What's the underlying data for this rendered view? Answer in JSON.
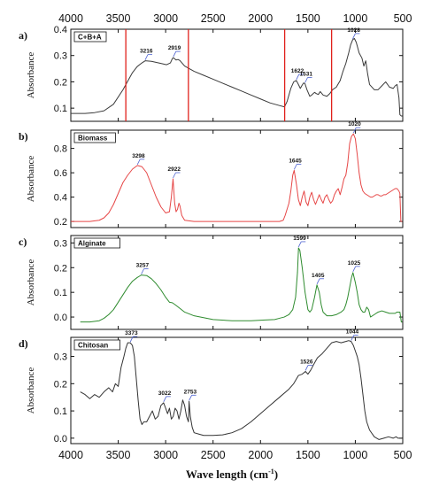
{
  "chart_data": {
    "type": "line",
    "xlabel": "Wave length (cm",
    "xlabel_sup": "-1",
    "xlabel_end": ")",
    "xlim": [
      4000,
      500
    ],
    "x_ticks": [
      "4000",
      "3500",
      "3000",
      "2500",
      "2000",
      "1500",
      "1000",
      "500"
    ],
    "reference_lines_x": [
      3420,
      2760,
      1745,
      1250
    ],
    "reference_line_color": "#e0201b",
    "panels": [
      {
        "letter": "a)",
        "title": "C+B+A",
        "ylabel": "Absorbance",
        "color": "#3a3a3a",
        "ylim": [
          0.05,
          0.4
        ],
        "y_ticks": [
          "0.1",
          "0.2",
          "0.3",
          "0.4"
        ],
        "y_tick_values": [
          0.1,
          0.2,
          0.3,
          0.4
        ],
        "peaks": [
          {
            "label": "3216",
            "x": 3216,
            "y": 0.28
          },
          {
            "label": "2919",
            "x": 2919,
            "y": 0.292
          },
          {
            "label": "1622",
            "x": 1622,
            "y": 0.205
          },
          {
            "label": "1531",
            "x": 1531,
            "y": 0.193
          },
          {
            "label": "1028",
            "x": 1028,
            "y": 0.36
          }
        ],
        "x": [
          4000,
          3950,
          3850,
          3750,
          3650,
          3550,
          3450,
          3350,
          3300,
          3250,
          3216,
          3150,
          3050,
          2990,
          2950,
          2930,
          2919,
          2890,
          2870,
          2850,
          2800,
          2700,
          2600,
          2500,
          2400,
          2300,
          2200,
          2100,
          2000,
          1900,
          1800,
          1750,
          1740,
          1720,
          1700,
          1680,
          1650,
          1622,
          1600,
          1580,
          1560,
          1545,
          1531,
          1510,
          1480,
          1460,
          1430,
          1410,
          1390,
          1370,
          1340,
          1300,
          1270,
          1240,
          1200,
          1160,
          1130,
          1100,
          1070,
          1050,
          1028,
          1010,
          990,
          960,
          930,
          910,
          890,
          870,
          850,
          800,
          760,
          720,
          680,
          640,
          600,
          580,
          560,
          540,
          530,
          515,
          505
        ],
        "y": [
          0.08,
          0.08,
          0.08,
          0.083,
          0.09,
          0.115,
          0.17,
          0.235,
          0.258,
          0.272,
          0.28,
          0.278,
          0.27,
          0.265,
          0.272,
          0.288,
          0.292,
          0.283,
          0.285,
          0.281,
          0.26,
          0.24,
          0.225,
          0.21,
          0.195,
          0.18,
          0.165,
          0.15,
          0.135,
          0.12,
          0.11,
          0.105,
          0.11,
          0.125,
          0.15,
          0.175,
          0.2,
          0.205,
          0.19,
          0.175,
          0.188,
          0.196,
          0.193,
          0.17,
          0.145,
          0.15,
          0.16,
          0.155,
          0.152,
          0.163,
          0.15,
          0.145,
          0.155,
          0.17,
          0.18,
          0.205,
          0.24,
          0.27,
          0.31,
          0.34,
          0.36,
          0.365,
          0.35,
          0.31,
          0.29,
          0.26,
          0.28,
          0.23,
          0.19,
          0.17,
          0.17,
          0.185,
          0.2,
          0.18,
          0.175,
          0.185,
          0.19,
          0.14,
          0.075,
          0.07,
          0.07
        ]
      },
      {
        "letter": "b)",
        "title": "Biomass",
        "ylabel": "Absorbance",
        "color": "#e64646",
        "ylim": [
          0.15,
          0.95
        ],
        "y_ticks": [
          "0.2",
          "0.4",
          "0.6",
          "0.8"
        ],
        "y_tick_values": [
          0.2,
          0.4,
          0.6,
          0.8
        ],
        "peaks": [
          {
            "label": "3298",
            "x": 3298,
            "y": 0.66
          },
          {
            "label": "2922",
            "x": 2922,
            "y": 0.55
          },
          {
            "label": "1645",
            "x": 1645,
            "y": 0.62
          },
          {
            "label": "1020",
            "x": 1020,
            "y": 0.92
          }
        ],
        "x": [
          4000,
          3900,
          3800,
          3700,
          3650,
          3600,
          3550,
          3500,
          3450,
          3400,
          3350,
          3298,
          3250,
          3200,
          3150,
          3100,
          3050,
          3000,
          2960,
          2940,
          2922,
          2905,
          2890,
          2875,
          2860,
          2850,
          2830,
          2800,
          2700,
          2500,
          2300,
          2100,
          1900,
          1800,
          1760,
          1740,
          1720,
          1700,
          1680,
          1660,
          1645,
          1620,
          1600,
          1580,
          1560,
          1540,
          1520,
          1500,
          1480,
          1460,
          1440,
          1420,
          1400,
          1380,
          1360,
          1340,
          1320,
          1300,
          1280,
          1260,
          1240,
          1220,
          1200,
          1180,
          1160,
          1140,
          1120,
          1100,
          1080,
          1060,
          1040,
          1020,
          1000,
          980,
          960,
          940,
          920,
          900,
          880,
          860,
          840,
          820,
          800,
          780,
          760,
          740,
          720,
          700,
          680,
          660,
          640,
          620,
          600,
          580,
          560,
          540,
          530,
          520,
          505
        ],
        "y": [
          0.2,
          0.2,
          0.2,
          0.21,
          0.23,
          0.27,
          0.34,
          0.43,
          0.52,
          0.58,
          0.63,
          0.66,
          0.65,
          0.6,
          0.5,
          0.4,
          0.32,
          0.27,
          0.28,
          0.4,
          0.55,
          0.35,
          0.28,
          0.3,
          0.35,
          0.33,
          0.25,
          0.21,
          0.2,
          0.2,
          0.2,
          0.2,
          0.2,
          0.2,
          0.21,
          0.25,
          0.3,
          0.35,
          0.45,
          0.58,
          0.62,
          0.5,
          0.38,
          0.33,
          0.4,
          0.45,
          0.36,
          0.33,
          0.4,
          0.44,
          0.38,
          0.34,
          0.38,
          0.42,
          0.38,
          0.35,
          0.4,
          0.42,
          0.38,
          0.35,
          0.37,
          0.42,
          0.45,
          0.47,
          0.42,
          0.48,
          0.55,
          0.58,
          0.68,
          0.84,
          0.9,
          0.92,
          0.88,
          0.75,
          0.6,
          0.5,
          0.45,
          0.43,
          0.42,
          0.41,
          0.4,
          0.4,
          0.41,
          0.42,
          0.42,
          0.41,
          0.41,
          0.42,
          0.42,
          0.43,
          0.44,
          0.45,
          0.46,
          0.47,
          0.47,
          0.45,
          0.43,
          0.2,
          0.2
        ]
      },
      {
        "letter": "c)",
        "title": "Alginate",
        "ylabel": "Absorbance",
        "color": "#2e8b2e",
        "ylim": [
          -0.05,
          0.33
        ],
        "y_ticks": [
          "0.0",
          "0.1",
          "0.2",
          "0.3"
        ],
        "y_tick_values": [
          0.0,
          0.1,
          0.2,
          0.3
        ],
        "peaks": [
          {
            "label": "3257",
            "x": 3257,
            "y": 0.17
          },
          {
            "label": "1599",
            "x": 1599,
            "y": 0.28
          },
          {
            "label": "1405",
            "x": 1405,
            "y": 0.13
          },
          {
            "label": "1025",
            "x": 1025,
            "y": 0.18
          }
        ],
        "x": [
          3900,
          3800,
          3700,
          3650,
          3600,
          3550,
          3500,
          3450,
          3400,
          3350,
          3300,
          3257,
          3200,
          3150,
          3100,
          3050,
          3000,
          2960,
          2930,
          2900,
          2850,
          2800,
          2700,
          2500,
          2300,
          2100,
          1950,
          1850,
          1800,
          1750,
          1700,
          1660,
          1630,
          1610,
          1599,
          1585,
          1560,
          1530,
          1500,
          1480,
          1460,
          1430,
          1405,
          1380,
          1360,
          1340,
          1300,
          1250,
          1200,
          1150,
          1120,
          1100,
          1080,
          1060,
          1040,
          1025,
          1000,
          980,
          960,
          940,
          920,
          900,
          880,
          860,
          840,
          800,
          760,
          720,
          680,
          640,
          600,
          580,
          560,
          545,
          530,
          515,
          505
        ],
        "y": [
          -0.02,
          -0.02,
          -0.015,
          -0.005,
          0.01,
          0.03,
          0.06,
          0.09,
          0.12,
          0.145,
          0.16,
          0.17,
          0.168,
          0.155,
          0.135,
          0.11,
          0.08,
          0.06,
          0.058,
          0.05,
          0.035,
          0.02,
          0.005,
          -0.01,
          -0.015,
          -0.015,
          -0.012,
          -0.01,
          -0.005,
          0.0,
          0.01,
          0.03,
          0.08,
          0.18,
          0.28,
          0.27,
          0.2,
          0.1,
          0.03,
          0.02,
          0.03,
          0.08,
          0.13,
          0.1,
          0.05,
          0.02,
          0.005,
          0.005,
          0.01,
          0.02,
          0.03,
          0.05,
          0.08,
          0.12,
          0.16,
          0.18,
          0.14,
          0.1,
          0.05,
          0.03,
          0.02,
          0.02,
          0.04,
          0.03,
          0.0,
          0.01,
          0.02,
          0.025,
          0.02,
          0.015,
          0.015,
          0.015,
          0.02,
          0.02,
          0.02,
          -0.02,
          -0.02
        ]
      },
      {
        "letter": "d)",
        "title": "Chitosan",
        "ylabel": "Absorbance",
        "color": "#333333",
        "ylim": [
          -0.02,
          0.37
        ],
        "y_ticks": [
          "0.0",
          "0.1",
          "0.2",
          "0.3"
        ],
        "y_tick_values": [
          0.0,
          0.1,
          0.2,
          0.3
        ],
        "peaks": [
          {
            "label": "3373",
            "x": 3373,
            "y": 0.35
          },
          {
            "label": "3022",
            "x": 3022,
            "y": 0.13
          },
          {
            "label": "2753",
            "x": 2753,
            "y": 0.135
          },
          {
            "label": "1526",
            "x": 1526,
            "y": 0.245
          },
          {
            "label": "1044",
            "x": 1044,
            "y": 0.355
          }
        ],
        "x": [
          3900,
          3850,
          3800,
          3750,
          3700,
          3650,
          3600,
          3560,
          3530,
          3500,
          3470,
          3440,
          3420,
          3400,
          3373,
          3350,
          3330,
          3310,
          3290,
          3270,
          3250,
          3230,
          3200,
          3170,
          3140,
          3110,
          3080,
          3050,
          3022,
          3000,
          2980,
          2960,
          2940,
          2920,
          2900,
          2880,
          2860,
          2840,
          2820,
          2800,
          2780,
          2760,
          2753,
          2740,
          2720,
          2700,
          2650,
          2600,
          2500,
          2400,
          2300,
          2200,
          2100,
          2000,
          1900,
          1800,
          1700,
          1650,
          1600,
          1560,
          1526,
          1500,
          1470,
          1440,
          1400,
          1350,
          1300,
          1250,
          1200,
          1150,
          1100,
          1070,
          1044,
          1020,
          1000,
          980,
          960,
          940,
          920,
          900,
          880,
          850,
          800,
          750,
          700,
          650,
          600,
          570,
          550,
          530,
          510
        ],
        "y": [
          0.17,
          0.16,
          0.145,
          0.16,
          0.15,
          0.17,
          0.185,
          0.17,
          0.2,
          0.19,
          0.26,
          0.3,
          0.33,
          0.35,
          0.35,
          0.34,
          0.3,
          0.22,
          0.14,
          0.07,
          0.05,
          0.06,
          0.06,
          0.08,
          0.1,
          0.07,
          0.08,
          0.12,
          0.13,
          0.11,
          0.09,
          0.11,
          0.07,
          0.08,
          0.11,
          0.1,
          0.07,
          0.1,
          0.14,
          0.12,
          0.08,
          0.06,
          0.135,
          0.08,
          0.04,
          0.02,
          0.015,
          0.01,
          0.01,
          0.012,
          0.02,
          0.035,
          0.06,
          0.09,
          0.12,
          0.15,
          0.18,
          0.2,
          0.23,
          0.235,
          0.245,
          0.235,
          0.25,
          0.27,
          0.295,
          0.31,
          0.33,
          0.35,
          0.355,
          0.35,
          0.355,
          0.358,
          0.355,
          0.34,
          0.32,
          0.3,
          0.27,
          0.22,
          0.16,
          0.1,
          0.06,
          0.03,
          0.005,
          -0.005,
          0.0,
          0.005,
          0.0,
          0.005,
          0.0,
          0.0,
          0.0
        ]
      }
    ]
  }
}
